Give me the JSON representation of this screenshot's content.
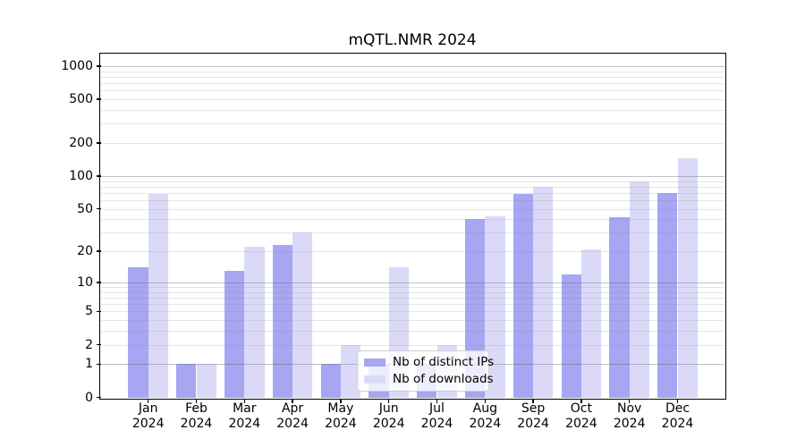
{
  "chart_data": {
    "type": "bar",
    "title": "mQTL.NMR 2024",
    "x_axis": {
      "categories": [
        "Jan",
        "Feb",
        "Mar",
        "Apr",
        "May",
        "Jun",
        "Jul",
        "Aug",
        "Sep",
        "Oct",
        "Nov",
        "Dec"
      ],
      "year_label": "2024"
    },
    "y_axis": {
      "scale": "log1p",
      "ticks": [
        1000,
        500,
        200,
        100,
        50,
        20,
        10,
        5,
        2,
        1,
        0
      ],
      "max": 1275,
      "grid_major": [
        1,
        10,
        100,
        1000
      ],
      "grid_minor": [
        2,
        3,
        4,
        5,
        6,
        7,
        8,
        9,
        20,
        30,
        40,
        50,
        60,
        70,
        80,
        90,
        200,
        300,
        400,
        500,
        600,
        700,
        800,
        900
      ],
      "grid": "on"
    },
    "series": [
      {
        "name": "Nb of distinct IPs",
        "color": "#a6a6f2",
        "values": [
          14,
          1,
          13,
          23,
          1,
          1,
          1,
          40,
          68,
          12,
          42,
          70
        ]
      },
      {
        "name": "Nb of downloads",
        "color": "#dadaf8",
        "values": [
          68,
          1,
          22,
          30,
          2,
          14,
          2,
          43,
          80,
          21,
          90,
          145
        ]
      }
    ],
    "legend": {
      "position": "lower-center"
    }
  }
}
